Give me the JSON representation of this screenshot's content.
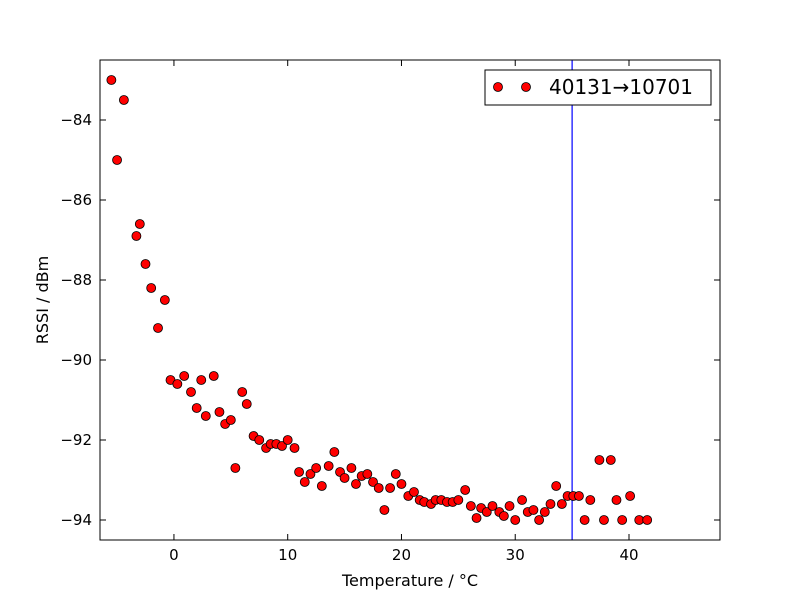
{
  "chart_data": {
    "type": "scatter",
    "xlabel": "Temperature / °C",
    "ylabel": "RSSI / dBm",
    "xlim": [
      -6.5,
      48
    ],
    "ylim": [
      -94.5,
      -82.5
    ],
    "xticks": [
      0,
      10,
      20,
      30,
      40
    ],
    "xtick_labels": [
      "0",
      "10",
      "20",
      "30",
      "40"
    ],
    "yticks": [
      -84,
      -86,
      -88,
      -90,
      -92,
      -94
    ],
    "ytick_labels": [
      "−84",
      "−86",
      "−88",
      "−90",
      "−92",
      "−94"
    ],
    "grid": false,
    "legend_position": "top-right",
    "vline": {
      "x": 35,
      "color": "#0000ff"
    },
    "series": [
      {
        "name": "40131→10701",
        "color": "#ff0000",
        "marker": "circle",
        "points": [
          [
            -5.5,
            -83.0
          ],
          [
            -5.0,
            -85.0
          ],
          [
            -4.4,
            -83.5
          ],
          [
            -3.3,
            -86.9
          ],
          [
            -3.0,
            -86.6
          ],
          [
            -2.5,
            -87.6
          ],
          [
            -2.0,
            -88.2
          ],
          [
            -1.4,
            -89.2
          ],
          [
            -0.8,
            -88.5
          ],
          [
            -0.3,
            -90.5
          ],
          [
            0.3,
            -90.6
          ],
          [
            0.9,
            -90.4
          ],
          [
            1.5,
            -90.8
          ],
          [
            2.0,
            -91.2
          ],
          [
            2.4,
            -90.5
          ],
          [
            2.8,
            -91.4
          ],
          [
            3.5,
            -90.4
          ],
          [
            4.0,
            -91.3
          ],
          [
            4.5,
            -91.6
          ],
          [
            5.0,
            -91.5
          ],
          [
            5.4,
            -92.7
          ],
          [
            6.0,
            -90.8
          ],
          [
            6.4,
            -91.1
          ],
          [
            7.0,
            -91.9
          ],
          [
            7.5,
            -92.0
          ],
          [
            8.1,
            -92.2
          ],
          [
            8.5,
            -92.1
          ],
          [
            9.0,
            -92.1
          ],
          [
            9.5,
            -92.15
          ],
          [
            10.0,
            -92.0
          ],
          [
            10.6,
            -92.2
          ],
          [
            11.0,
            -92.8
          ],
          [
            11.5,
            -93.05
          ],
          [
            12.0,
            -92.85
          ],
          [
            12.5,
            -92.7
          ],
          [
            13.0,
            -93.15
          ],
          [
            13.6,
            -92.65
          ],
          [
            14.1,
            -92.3
          ],
          [
            14.6,
            -92.8
          ],
          [
            15.0,
            -92.95
          ],
          [
            15.6,
            -92.7
          ],
          [
            16.0,
            -93.1
          ],
          [
            16.5,
            -92.9
          ],
          [
            17.0,
            -92.85
          ],
          [
            17.5,
            -93.05
          ],
          [
            18.0,
            -93.2
          ],
          [
            18.5,
            -93.75
          ],
          [
            19.0,
            -93.2
          ],
          [
            19.5,
            -92.85
          ],
          [
            20.0,
            -93.1
          ],
          [
            20.6,
            -93.4
          ],
          [
            21.1,
            -93.3
          ],
          [
            21.6,
            -93.5
          ],
          [
            22.0,
            -93.55
          ],
          [
            22.6,
            -93.6
          ],
          [
            23.0,
            -93.5
          ],
          [
            23.5,
            -93.5
          ],
          [
            24.0,
            -93.55
          ],
          [
            24.5,
            -93.55
          ],
          [
            25.0,
            -93.5
          ],
          [
            25.6,
            -93.25
          ],
          [
            26.1,
            -93.65
          ],
          [
            26.6,
            -93.95
          ],
          [
            27.0,
            -93.7
          ],
          [
            27.5,
            -93.8
          ],
          [
            28.0,
            -93.65
          ],
          [
            28.6,
            -93.8
          ],
          [
            29.0,
            -93.9
          ],
          [
            29.5,
            -93.65
          ],
          [
            30.0,
            -94.0
          ],
          [
            30.6,
            -93.5
          ],
          [
            31.1,
            -93.8
          ],
          [
            31.6,
            -93.75
          ],
          [
            32.1,
            -94.0
          ],
          [
            32.6,
            -93.8
          ],
          [
            33.1,
            -93.6
          ],
          [
            33.6,
            -93.15
          ],
          [
            34.1,
            -93.6
          ],
          [
            34.6,
            -93.4
          ],
          [
            35.1,
            -93.4
          ],
          [
            35.6,
            -93.4
          ],
          [
            36.1,
            -94.0
          ],
          [
            36.6,
            -93.5
          ],
          [
            37.4,
            -92.5
          ],
          [
            37.8,
            -94.0
          ],
          [
            38.4,
            -92.5
          ],
          [
            38.9,
            -93.5
          ],
          [
            39.4,
            -94.0
          ],
          [
            40.1,
            -93.4
          ],
          [
            40.9,
            -94.0
          ],
          [
            41.6,
            -94.0
          ]
        ]
      }
    ]
  }
}
